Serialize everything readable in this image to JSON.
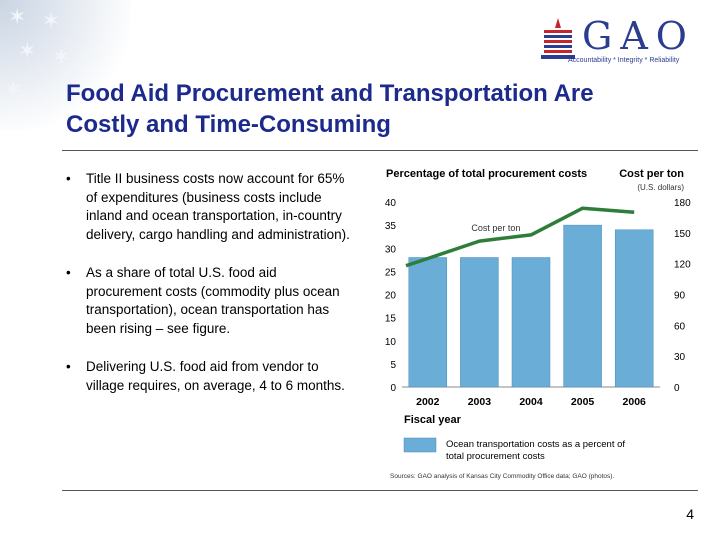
{
  "logo": {
    "text": "GAO",
    "tagline": "Accountability * Integrity * Reliability"
  },
  "title_line1": "Food Aid Procurement and Transportation Are",
  "title_line2": "Costly and Time-Consuming",
  "bullet_symbol": "•",
  "bullets": [
    {
      "text": "Title II business costs now account for 65% of expenditures (business costs include inland and ocean transportation, in-country delivery, cargo handling and administration)."
    },
    {
      "text": "As a share of total U.S. food aid procurement costs (commodity plus ocean transportation), ocean transportation has been rising – see figure."
    },
    {
      "text": "Delivering U.S. food aid from vendor to village requires, on average, 4 to 6 months."
    }
  ],
  "page_number": "4",
  "colors": {
    "title": "#1b2a8c",
    "bar": "#6aaed8",
    "line": "#2e7d3a",
    "logo": "#2b3d8f"
  },
  "chart_data": {
    "type": "bar",
    "title": "Percentage of total procurement costs",
    "right_axis_title": "Cost per ton",
    "right_axis_unit": "(U.S. dollars)",
    "xlabel": "Fiscal year",
    "categories": [
      "2002",
      "2003",
      "2004",
      "2005",
      "2006"
    ],
    "left_ticks": [
      "0",
      "5",
      "10",
      "15",
      "20",
      "25",
      "30",
      "35",
      "40"
    ],
    "right_ticks": [
      "0",
      "30",
      "60",
      "90",
      "120",
      "150",
      "180"
    ],
    "ylim_left": [
      0,
      40
    ],
    "ylim_right": [
      0,
      180
    ],
    "series": [
      {
        "name": "Ocean transportation costs as a percent of total procurement costs",
        "legend_line1": "Ocean transportation costs as a percent of",
        "legend_line2": "total procurement costs",
        "type": "bar",
        "axis": "left",
        "values": [
          28,
          28,
          28,
          35,
          34
        ]
      },
      {
        "name": "Cost per ton",
        "type": "line",
        "axis": "right",
        "x": [
          2001.8,
          2002,
          2003,
          2004,
          2005,
          2006
        ],
        "values": [
          118,
          125,
          142,
          148,
          174,
          170
        ]
      }
    ],
    "grid": false,
    "source": "Sources: GAO analysis of Kansas City Commodity Office data; GAO (photos)."
  }
}
